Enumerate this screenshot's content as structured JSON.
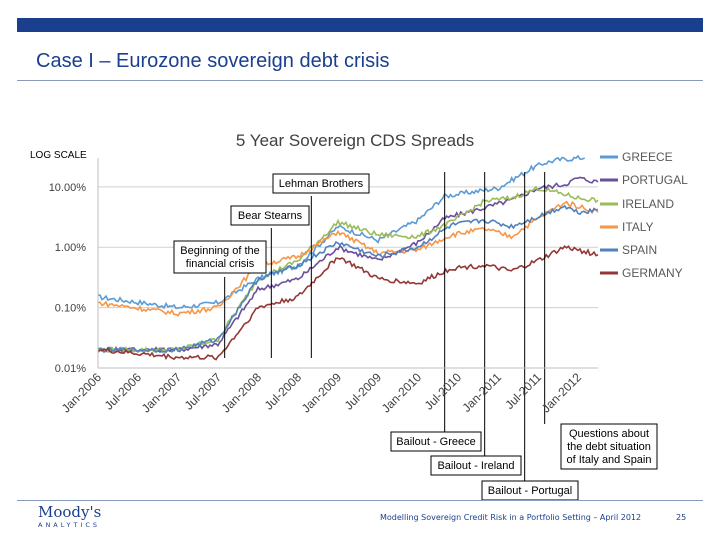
{
  "slide": {
    "title": "Case I – Eurozone sovereign debt crisis",
    "footer": "Modelling Sovereign Credit Risk in a Portfolio Setting – April 2012",
    "page_number": "25",
    "logo_main": "Moody's",
    "logo_sub": "ANALYTICS"
  },
  "chart_data": {
    "type": "line",
    "title": "5 Year Sovereign CDS Spreads",
    "scale_note": "LOG SCALE",
    "y_scale": "log",
    "ylim": [
      0.01,
      30
    ],
    "y_ticks": [
      {
        "value": 0.01,
        "label": "0.01%"
      },
      {
        "value": 0.1,
        "label": "0.10%"
      },
      {
        "value": 1,
        "label": "1.00%"
      },
      {
        "value": 10,
        "label": "10.00%"
      }
    ],
    "xlim": [
      "2006-01",
      "2012-04"
    ],
    "x_ticks": [
      "Jan-2006",
      "Jul-2006",
      "Jan-2007",
      "Jul-2007",
      "Jan-2008",
      "Jul-2008",
      "Jan-2009",
      "Jul-2009",
      "Jan-2010",
      "Jul-2010",
      "Jan-2011",
      "Jul-2011",
      "Jan-2012"
    ],
    "grid": "horizontal",
    "legend": "right",
    "series": [
      {
        "name": "GREECE",
        "color": "#5b9bd5",
        "points": [
          [
            "2006-01",
            0.15
          ],
          [
            "2007-01",
            0.1
          ],
          [
            "2007-07",
            0.12
          ],
          [
            "2008-01",
            0.3
          ],
          [
            "2008-07",
            0.5
          ],
          [
            "2009-01",
            2.2
          ],
          [
            "2009-07",
            1.3
          ],
          [
            "2010-01",
            2.8
          ],
          [
            "2010-05",
            7.0
          ],
          [
            "2010-10",
            8.5
          ],
          [
            "2011-01",
            9.5
          ],
          [
            "2011-06",
            20
          ],
          [
            "2011-08",
            25
          ],
          [
            "2011-10",
            28
          ],
          [
            "2012-01",
            30
          ],
          [
            "2012-02",
            30
          ]
        ]
      },
      {
        "name": "PORTUGAL",
        "color": "#6a4f9a",
        "points": [
          [
            "2006-01",
            0.02
          ],
          [
            "2007-01",
            0.02
          ],
          [
            "2007-07",
            0.025
          ],
          [
            "2008-01",
            0.2
          ],
          [
            "2008-07",
            0.3
          ],
          [
            "2009-01",
            1.0
          ],
          [
            "2009-07",
            0.6
          ],
          [
            "2010-01",
            1.2
          ],
          [
            "2010-05",
            3.0
          ],
          [
            "2010-11",
            4.5
          ],
          [
            "2011-03",
            6.0
          ],
          [
            "2011-07",
            9.5
          ],
          [
            "2011-11",
            11
          ],
          [
            "2012-01",
            14
          ],
          [
            "2012-04",
            12
          ]
        ]
      },
      {
        "name": "IRELAND",
        "color": "#9bbb59",
        "points": [
          [
            "2006-01",
            0.02
          ],
          [
            "2007-01",
            0.02
          ],
          [
            "2007-07",
            0.03
          ],
          [
            "2008-01",
            0.3
          ],
          [
            "2008-07",
            0.6
          ],
          [
            "2009-01",
            2.6
          ],
          [
            "2009-07",
            1.6
          ],
          [
            "2010-01",
            1.5
          ],
          [
            "2010-06",
            2.6
          ],
          [
            "2010-11",
            5.8
          ],
          [
            "2011-03",
            6.5
          ],
          [
            "2011-07",
            9.5
          ],
          [
            "2011-11",
            7.5
          ],
          [
            "2012-01",
            6.5
          ],
          [
            "2012-04",
            6.0
          ]
        ]
      },
      {
        "name": "ITALY",
        "color": "#f79646",
        "points": [
          [
            "2006-01",
            0.12
          ],
          [
            "2007-01",
            0.08
          ],
          [
            "2007-07",
            0.1
          ],
          [
            "2008-01",
            0.5
          ],
          [
            "2008-07",
            0.7
          ],
          [
            "2009-01",
            1.8
          ],
          [
            "2009-07",
            0.8
          ],
          [
            "2010-01",
            0.9
          ],
          [
            "2010-06",
            1.6
          ],
          [
            "2010-11",
            2.0
          ],
          [
            "2011-03",
            1.5
          ],
          [
            "2011-07",
            3.0
          ],
          [
            "2011-11",
            5.5
          ],
          [
            "2012-01",
            4.8
          ],
          [
            "2012-04",
            3.8
          ]
        ]
      },
      {
        "name": "SPAIN",
        "color": "#4f81bd",
        "points": [
          [
            "2006-01",
            0.02
          ],
          [
            "2007-01",
            0.02
          ],
          [
            "2007-07",
            0.03
          ],
          [
            "2008-01",
            0.3
          ],
          [
            "2008-07",
            0.5
          ],
          [
            "2009-01",
            1.2
          ],
          [
            "2009-07",
            0.7
          ],
          [
            "2010-01",
            1.0
          ],
          [
            "2010-06",
            2.3
          ],
          [
            "2010-11",
            2.8
          ],
          [
            "2011-03",
            2.2
          ],
          [
            "2011-07",
            3.2
          ],
          [
            "2011-11",
            4.8
          ],
          [
            "2012-01",
            3.8
          ],
          [
            "2012-04",
            4.2
          ]
        ]
      },
      {
        "name": "GERMANY",
        "color": "#953735",
        "points": [
          [
            "2006-01",
            0.02
          ],
          [
            "2007-01",
            0.015
          ],
          [
            "2007-07",
            0.015
          ],
          [
            "2008-01",
            0.1
          ],
          [
            "2008-07",
            0.15
          ],
          [
            "2009-01",
            0.7
          ],
          [
            "2009-07",
            0.3
          ],
          [
            "2010-01",
            0.25
          ],
          [
            "2010-06",
            0.45
          ],
          [
            "2010-11",
            0.5
          ],
          [
            "2011-03",
            0.4
          ],
          [
            "2011-07",
            0.6
          ],
          [
            "2011-11",
            1.0
          ],
          [
            "2012-01",
            0.9
          ],
          [
            "2012-04",
            0.75
          ]
        ]
      }
    ],
    "annotations": [
      {
        "label": "Lehman Brothers",
        "date": "2008-09"
      },
      {
        "label": "Bear Stearns",
        "date": "2008-03"
      },
      {
        "label": "Beginning of the financial crisis",
        "date": "2007-08"
      },
      {
        "label": "Bailout - Greece",
        "date": "2010-05"
      },
      {
        "label": "Bailout - Ireland",
        "date": "2010-11"
      },
      {
        "label": "Bailout - Portugal",
        "date": "2011-05"
      },
      {
        "label": "Questions about the debt situation of Italy and Spain",
        "date": "2011-08"
      }
    ]
  }
}
